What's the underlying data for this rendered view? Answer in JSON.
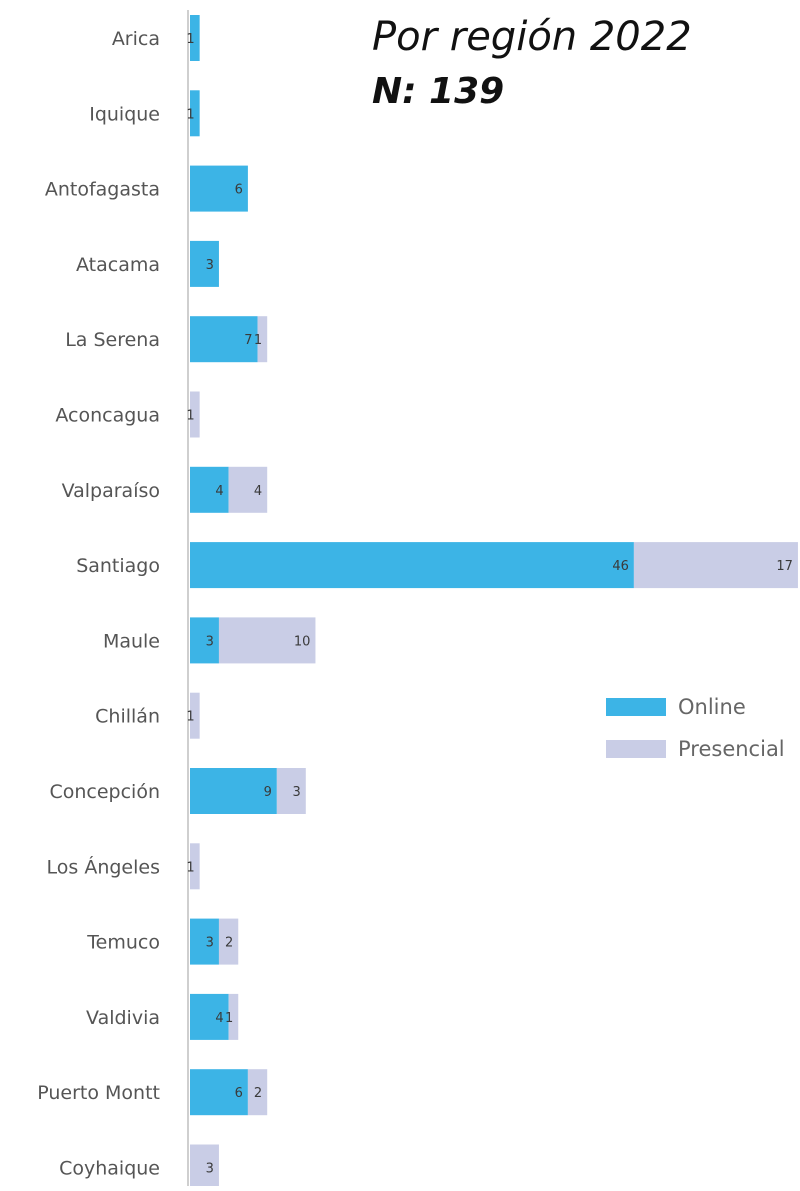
{
  "chart_data": {
    "type": "bar",
    "orientation": "horizontal",
    "stacked": true,
    "title": "Por región 2022",
    "subtitle": "N: 139",
    "categories": [
      "Arica",
      "Iquique",
      "Antofagasta",
      "Atacama",
      "La Serena",
      "Aconcagua",
      "Valparaíso",
      "Santiago",
      "Maule",
      "Chillán",
      "Concepción",
      "Los Ángeles",
      "Temuco",
      "Valdivia",
      "Puerto Montt",
      "Coyhaique"
    ],
    "series": [
      {
        "name": "Online",
        "color": "#3cb4e6",
        "values": [
          1,
          1,
          6,
          3,
          7,
          0,
          4,
          46,
          3,
          0,
          9,
          0,
          3,
          4,
          6,
          0
        ]
      },
      {
        "name": "Presencial",
        "color": "#c9cde6",
        "values": [
          0,
          0,
          0,
          0,
          1,
          1,
          4,
          17,
          10,
          1,
          3,
          1,
          2,
          1,
          2,
          3
        ]
      }
    ],
    "data_labels": true,
    "legend": "right",
    "grid": false
  }
}
